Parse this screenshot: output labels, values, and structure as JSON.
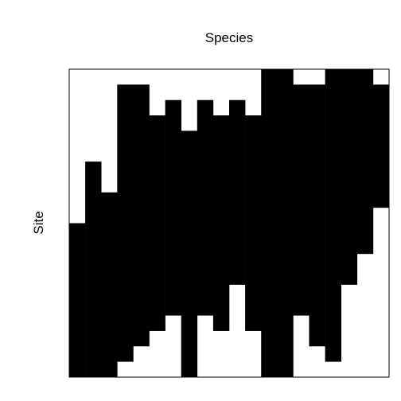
{
  "chart_data": {
    "type": "heatmap",
    "title": "Species",
    "xlabel": "",
    "ylabel": "Site",
    "legend": "none",
    "grid": false,
    "colors": {
      "present": "#000000",
      "absent": "#ffffff",
      "frame": "#000000"
    },
    "n_species": 20,
    "n_sites": 20,
    "column_black_rows": [
      [
        10,
        19
      ],
      [
        6,
        19
      ],
      [
        8,
        19
      ],
      [
        1,
        18
      ],
      [
        1,
        17
      ],
      [
        3,
        16
      ],
      [
        2,
        15
      ],
      [
        4,
        19
      ],
      [
        2,
        15
      ],
      [
        3,
        16
      ],
      [
        2,
        13
      ],
      [
        3,
        16
      ],
      [
        0,
        19
      ],
      [
        0,
        19
      ],
      [
        1,
        15
      ],
      [
        1,
        17
      ],
      [
        0,
        18
      ],
      [
        0,
        13
      ],
      [
        0,
        11
      ],
      [
        1,
        8
      ]
    ]
  }
}
